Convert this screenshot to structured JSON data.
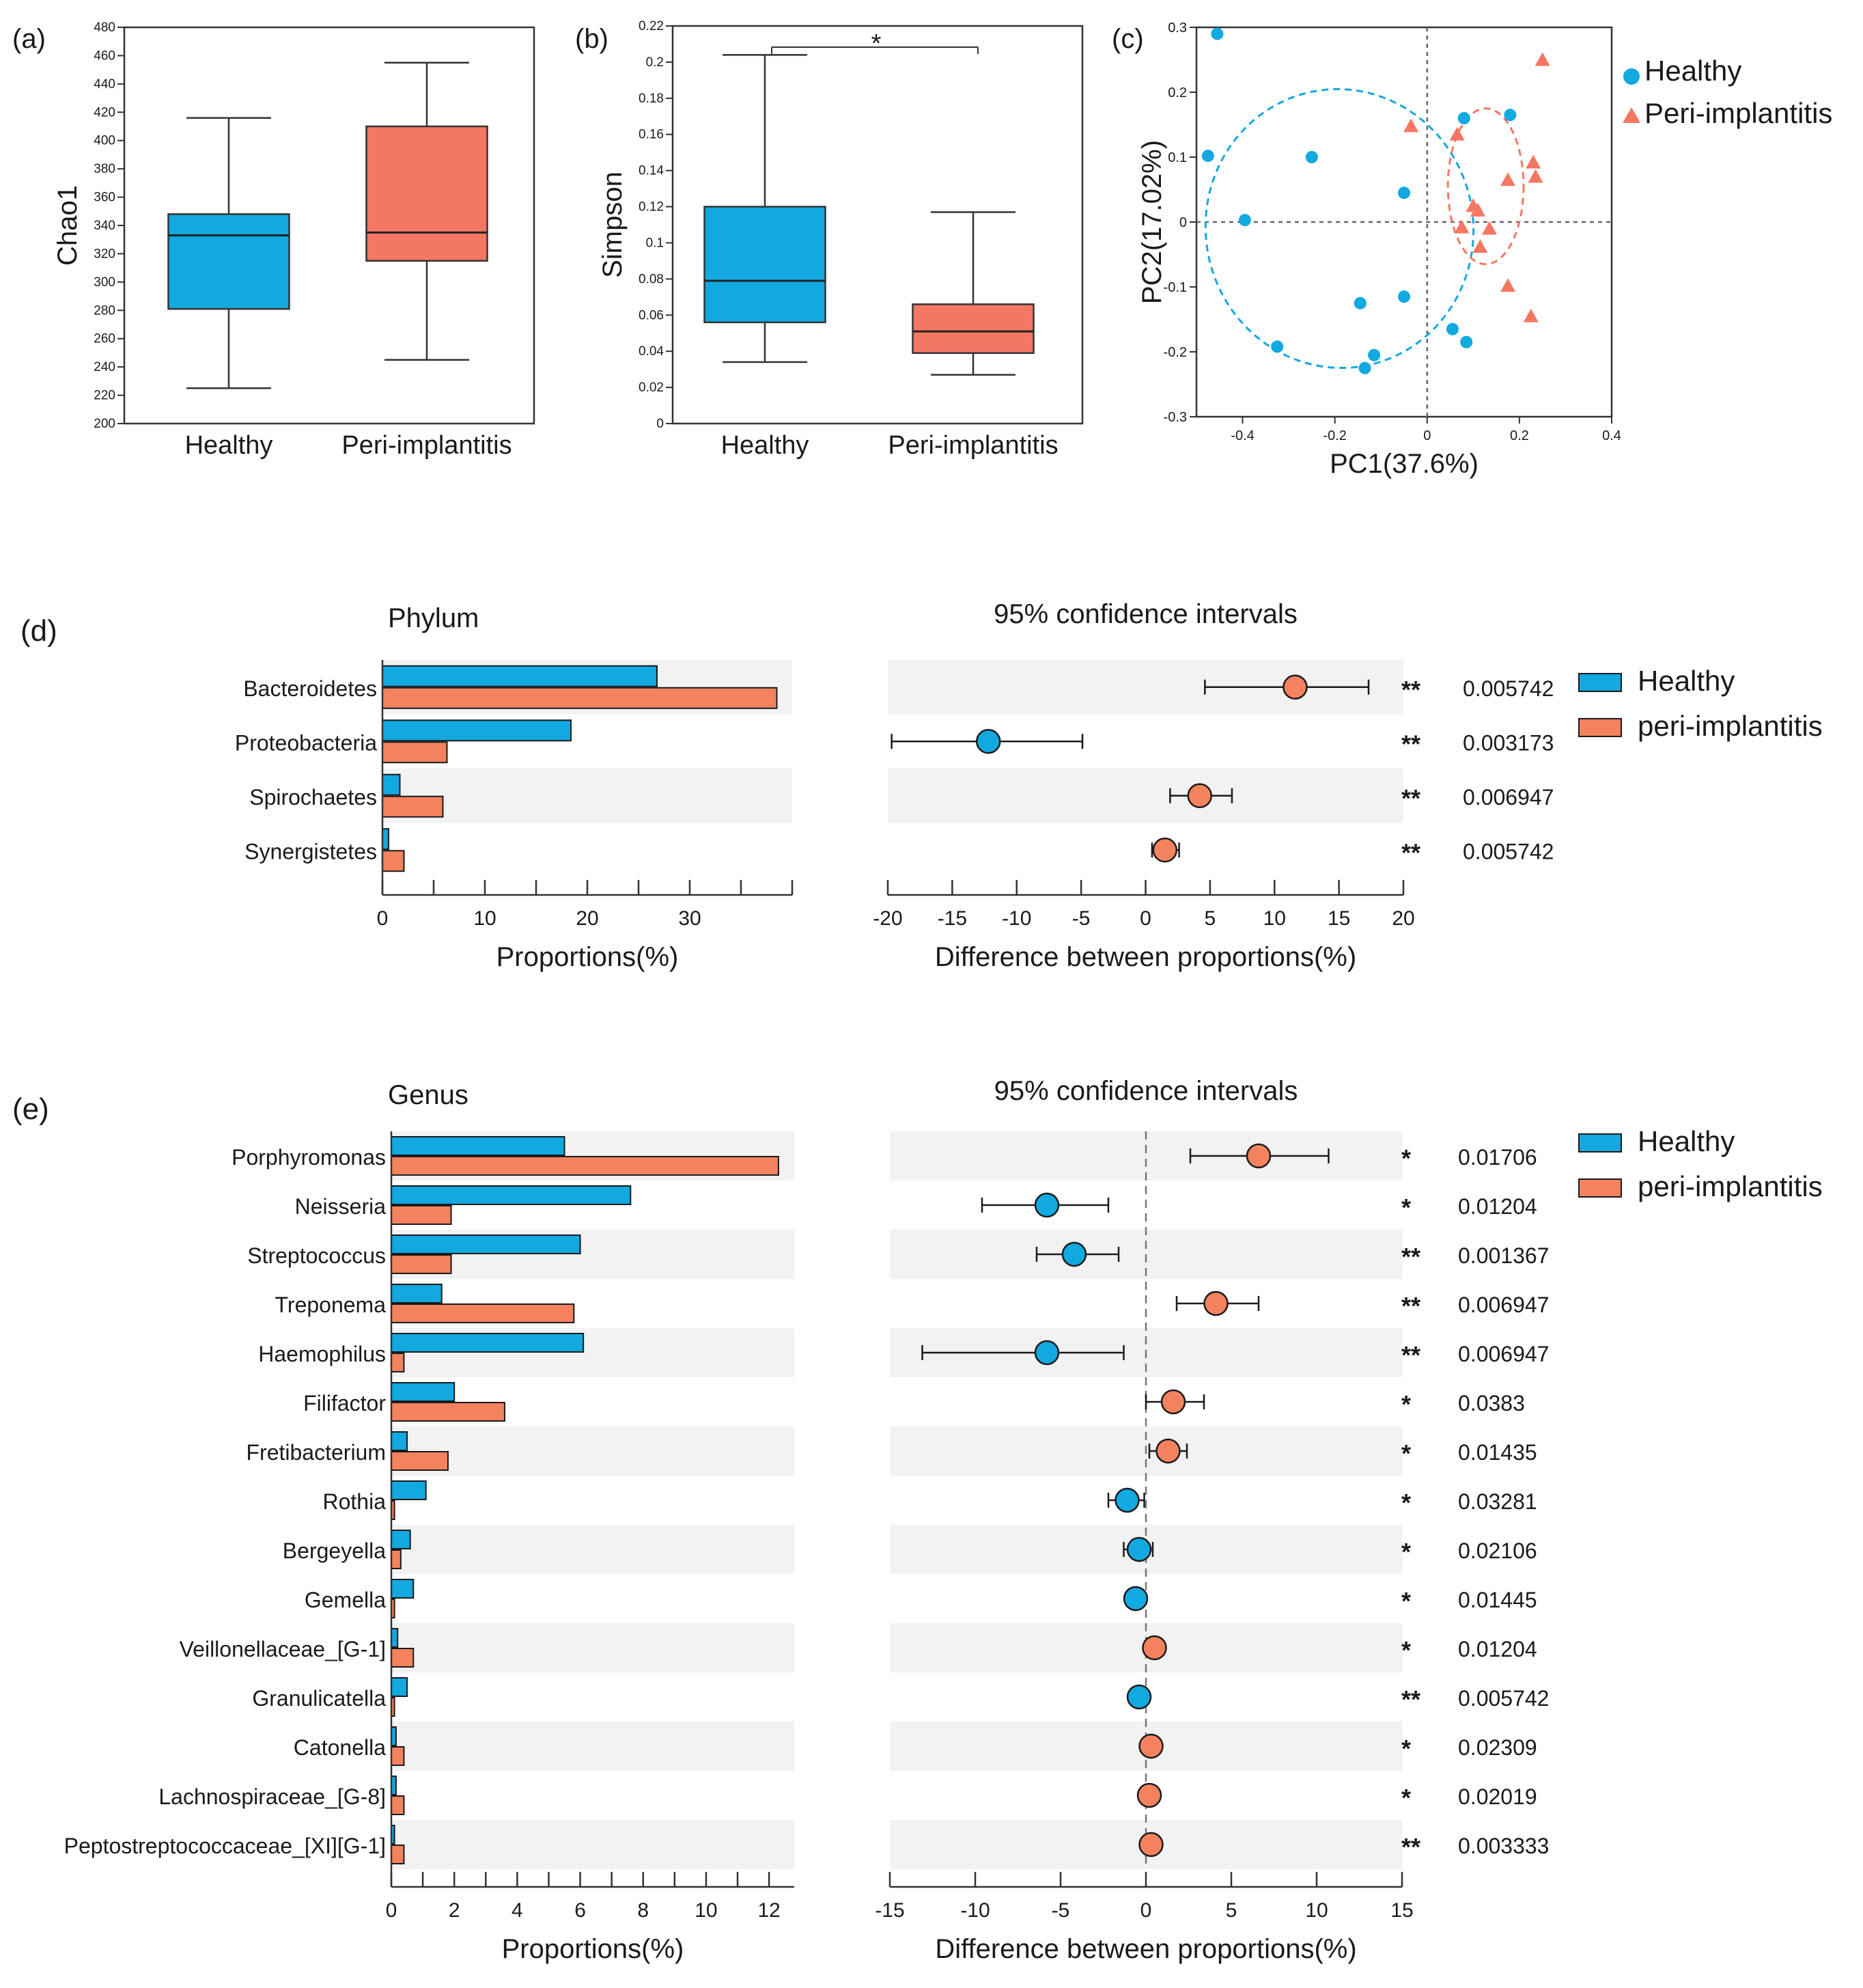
{
  "colors": {
    "healthy": "#12a8e0",
    "peri": "#f47763",
    "peri_bar": "#f4825f",
    "star": "#f26b6b",
    "band": "#f2f2f2",
    "axis": "#333333"
  },
  "chart_data": [
    {
      "id": "a",
      "type": "box",
      "panel_label": "(a)",
      "ylabel": "Chao1",
      "ylim": [
        200,
        480
      ],
      "ytick_step": 20,
      "categories": [
        "Healthy",
        "Peri-implantitis"
      ],
      "boxes": [
        {
          "group": "Healthy",
          "min": 225,
          "q1": 281,
          "median": 333,
          "q3": 348,
          "max": 416
        },
        {
          "group": "Peri-implantitis",
          "min": 245,
          "q1": 315,
          "median": 335,
          "q3": 410,
          "max": 455
        }
      ]
    },
    {
      "id": "b",
      "type": "box",
      "panel_label": "(b)",
      "ylabel": "Simpson",
      "ylim": [
        0,
        0.22
      ],
      "ytick_step": 0.02,
      "categories": [
        "Healthy",
        "Peri-implantitis"
      ],
      "boxes": [
        {
          "group": "Healthy",
          "min": 0.034,
          "q1": 0.056,
          "median": 0.079,
          "q3": 0.12,
          "max": 0.204
        },
        {
          "group": "Peri-implantitis",
          "min": 0.027,
          "q1": 0.039,
          "median": 0.051,
          "q3": 0.066,
          "max": 0.117
        }
      ],
      "significance": "*"
    },
    {
      "id": "c",
      "type": "scatter",
      "panel_label": "(c)",
      "xlabel": "PC1(37.6%)",
      "ylabel": "PC2(17.02%)",
      "xlim": [
        -0.5,
        0.4
      ],
      "ylim": [
        -0.3,
        0.3
      ],
      "xticks": [
        -0.4,
        -0.2,
        0,
        0.2,
        0.4
      ],
      "yticks": [
        -0.3,
        -0.2,
        -0.1,
        0,
        0.1,
        0.2,
        0.3
      ],
      "series": [
        {
          "name": "Healthy",
          "marker": "circle",
          "points": [
            [
              -0.455,
              0.29
            ],
            [
              -0.475,
              0.102
            ],
            [
              -0.395,
              0.003
            ],
            [
              -0.25,
              0.1
            ],
            [
              -0.325,
              -0.192
            ],
            [
              -0.145,
              -0.125
            ],
            [
              -0.135,
              -0.225
            ],
            [
              -0.115,
              -0.205
            ],
            [
              -0.05,
              0.045
            ],
            [
              -0.05,
              -0.115
            ],
            [
              0.055,
              -0.165
            ],
            [
              0.085,
              -0.185
            ],
            [
              0.08,
              0.16
            ],
            [
              0.18,
              0.165
            ]
          ]
        },
        {
          "name": "Peri-implantitis",
          "marker": "triangle",
          "points": [
            [
              -0.035,
              0.148
            ],
            [
              0.065,
              0.135
            ],
            [
              0.25,
              0.25
            ],
            [
              0.23,
              0.092
            ],
            [
              0.235,
              0.07
            ],
            [
              0.175,
              0.065
            ],
            [
              0.1,
              0.025
            ],
            [
              0.11,
              0.018
            ],
            [
              0.135,
              -0.01
            ],
            [
              0.075,
              -0.008
            ],
            [
              0.115,
              -0.038
            ],
            [
              0.175,
              -0.098
            ],
            [
              0.225,
              -0.145
            ]
          ]
        }
      ],
      "ellipses": [
        {
          "group": "Healthy",
          "cx": -0.19,
          "cy": -0.01,
          "rx": 0.29,
          "ry": 0.215,
          "angle_deg": -10
        },
        {
          "group": "Peri-implantitis",
          "cx": 0.127,
          "cy": 0.055,
          "rx": 0.082,
          "ry": 0.12,
          "angle_deg": 0
        }
      ],
      "legend": [
        "Healthy",
        "Peri-implantitis"
      ]
    },
    {
      "id": "d",
      "type": "extended_error_bar",
      "panel_label": "(d)",
      "title": "Phylum",
      "ci_title": "95% confidence intervals",
      "xlabel_left": "Proportions(%)",
      "xlabel_right": "Difference between proportions(%)",
      "left_xlim": [
        0,
        40
      ],
      "left_ticks": [
        0,
        10,
        20,
        30
      ],
      "right_xlim": [
        -20,
        20
      ],
      "right_ticks": [
        -20,
        -15,
        -10,
        -5,
        0,
        5,
        10,
        15,
        20
      ],
      "legend": [
        "Healthy",
        "peri-implantitis"
      ],
      "rows": [
        {
          "taxon": "Bacteroidetes",
          "healthy": 26.8,
          "peri": 38.5,
          "diff": 11.6,
          "ci": [
            4.6,
            17.3
          ],
          "winner": "peri",
          "stars": "**",
          "p": "0.005742"
        },
        {
          "taxon": "Proteobacteria",
          "healthy": 18.4,
          "peri": 6.3,
          "diff": -12.2,
          "ci": [
            -19.7,
            -4.9
          ],
          "winner": "healthy",
          "stars": "**",
          "p": "0.003173"
        },
        {
          "taxon": "Spirochaetes",
          "healthy": 1.7,
          "peri": 5.9,
          "diff": 4.2,
          "ci": [
            1.9,
            6.7
          ],
          "winner": "peri",
          "stars": "**",
          "p": "0.006947"
        },
        {
          "taxon": "Synergistetes",
          "healthy": 0.6,
          "peri": 2.1,
          "diff": 1.5,
          "ci": [
            0.5,
            2.6
          ],
          "winner": "peri",
          "stars": "**",
          "p": "0.005742"
        }
      ]
    },
    {
      "id": "e",
      "type": "extended_error_bar",
      "panel_label": "(e)",
      "title": "Genus",
      "ci_title": "95% confidence intervals",
      "xlabel_left": "Proportions(%)",
      "xlabel_right": "Difference between proportions(%)",
      "left_xlim": [
        0,
        12.8
      ],
      "left_ticks": [
        0,
        2,
        4,
        6,
        8,
        10,
        12
      ],
      "right_xlim": [
        -15,
        15
      ],
      "right_ticks": [
        -15,
        -10,
        -5,
        0,
        5,
        10,
        15
      ],
      "zero_line": true,
      "legend": [
        "Healthy",
        "peri-implantitis"
      ],
      "rows": [
        {
          "taxon": "Porphyromonas",
          "healthy": 5.5,
          "peri": 12.3,
          "diff": 6.6,
          "ci": [
            2.6,
            10.7
          ],
          "winner": "peri",
          "stars": "*",
          "p": "0.01706"
        },
        {
          "taxon": "Neisseria",
          "healthy": 7.6,
          "peri": 1.9,
          "diff": -5.8,
          "ci": [
            -9.6,
            -2.2
          ],
          "winner": "healthy",
          "stars": "*",
          "p": "0.01204"
        },
        {
          "taxon": "Streptococcus",
          "healthy": 6.0,
          "peri": 1.9,
          "diff": -4.2,
          "ci": [
            -6.4,
            -1.6
          ],
          "winner": "healthy",
          "stars": "**",
          "p": "0.001367"
        },
        {
          "taxon": "Treponema",
          "healthy": 1.6,
          "peri": 5.8,
          "diff": 4.1,
          "ci": [
            1.8,
            6.6
          ],
          "winner": "peri",
          "stars": "**",
          "p": "0.006947"
        },
        {
          "taxon": "Haemophilus",
          "healthy": 6.1,
          "peri": 0.4,
          "diff": -5.8,
          "ci": [
            -13.1,
            -1.3
          ],
          "winner": "healthy",
          "stars": "**",
          "p": "0.006947"
        },
        {
          "taxon": "Filifactor",
          "healthy": 2.0,
          "peri": 3.6,
          "diff": 1.6,
          "ci": [
            0.0,
            3.4
          ],
          "winner": "peri",
          "stars": "*",
          "p": "0.0383"
        },
        {
          "taxon": "Fretibacterium",
          "healthy": 0.5,
          "peri": 1.8,
          "diff": 1.3,
          "ci": [
            0.2,
            2.4
          ],
          "winner": "peri",
          "stars": "*",
          "p": "0.01435"
        },
        {
          "taxon": "Rothia",
          "healthy": 1.1,
          "peri": 0.1,
          "diff": -1.1,
          "ci": [
            -2.2,
            -0.1
          ],
          "winner": "healthy",
          "stars": "*",
          "p": "0.03281"
        },
        {
          "taxon": "Bergeyella",
          "healthy": 0.6,
          "peri": 0.3,
          "diff": -0.4,
          "ci": [
            -1.3,
            0.4
          ],
          "winner": "healthy",
          "stars": "*",
          "p": "0.02106"
        },
        {
          "taxon": "Gemella",
          "healthy": 0.7,
          "peri": 0.1,
          "diff": -0.6,
          "ci": [
            -1.1,
            -0.1
          ],
          "winner": "healthy",
          "stars": "*",
          "p": "0.01445"
        },
        {
          "taxon": "Veillonellaceae_[G-1]",
          "healthy": 0.2,
          "peri": 0.7,
          "diff": 0.5,
          "ci": [
            0.1,
            0.9
          ],
          "winner": "peri",
          "stars": "*",
          "p": "0.01204"
        },
        {
          "taxon": "Granulicatella",
          "healthy": 0.5,
          "peri": 0.1,
          "diff": -0.4,
          "ci": [
            -0.8,
            -0.1
          ],
          "winner": "healthy",
          "stars": "**",
          "p": "0.005742"
        },
        {
          "taxon": "Catonella",
          "healthy": 0.15,
          "peri": 0.4,
          "diff": 0.3,
          "ci": [
            0.05,
            0.6
          ],
          "winner": "peri",
          "stars": "*",
          "p": "0.02309"
        },
        {
          "taxon": "Lachnospiraceae_[G-8]",
          "healthy": 0.15,
          "peri": 0.4,
          "diff": 0.2,
          "ci": [
            0.0,
            0.5
          ],
          "winner": "peri",
          "stars": "*",
          "p": "0.02019"
        },
        {
          "taxon": "Peptostreptococcaceae_[XI][G-1]",
          "healthy": 0.1,
          "peri": 0.4,
          "diff": 0.3,
          "ci": [
            0.05,
            0.6
          ],
          "winner": "peri",
          "stars": "**",
          "p": "0.003333"
        }
      ]
    }
  ]
}
